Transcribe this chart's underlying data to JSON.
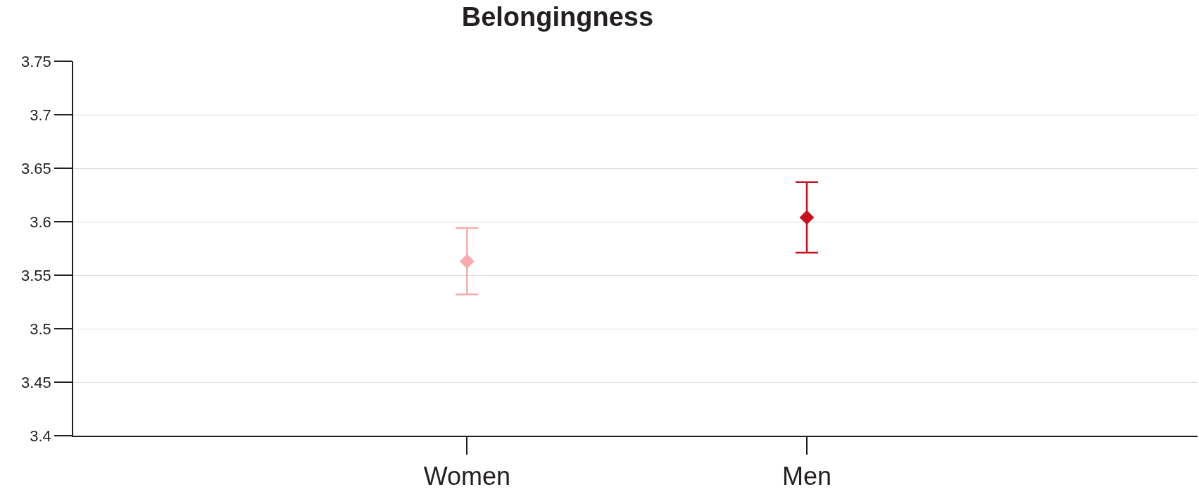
{
  "chart_data": {
    "type": "scatter",
    "title": "Belongingness",
    "categories": [
      "Women",
      "Men"
    ],
    "series": [
      {
        "values": [
          3.563,
          3.604
        ],
        "colors": [
          "#f9aaaa",
          "#c8101e"
        ],
        "errors": [
          [
            3.532,
            3.594
          ],
          [
            3.571,
            3.637
          ]
        ]
      }
    ],
    "ylim": [
      3.4,
      3.75
    ],
    "yticks": [
      3.4,
      3.45,
      3.5,
      3.55,
      3.6,
      3.65,
      3.7,
      3.75
    ],
    "grid": "y",
    "marker": "diamond"
  }
}
